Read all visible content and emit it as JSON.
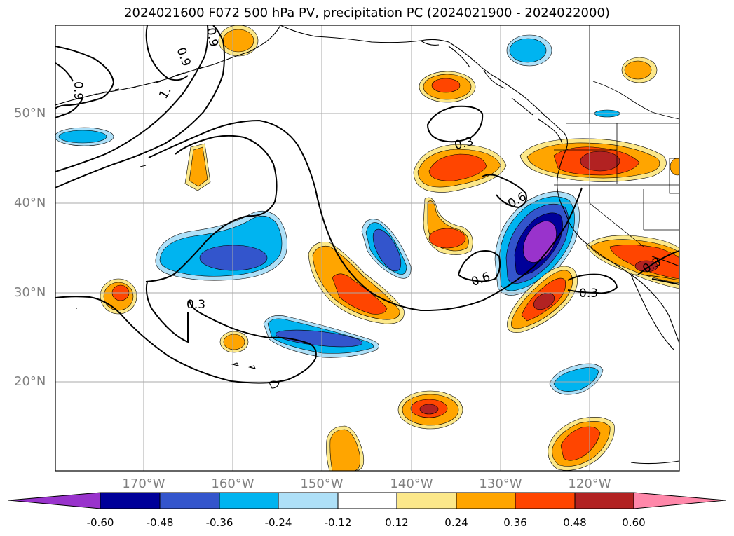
{
  "title": "2024021600 F072 500 hPa PV, precipitation PC (2024021900 - 2024022000)",
  "lat_labels": [
    {
      "text": "50°N"
    },
    {
      "text": "40°N"
    },
    {
      "text": "30°N"
    },
    {
      "text": "20°N"
    }
  ],
  "lon_labels": [
    {
      "text": "170°W"
    },
    {
      "text": "160°W"
    },
    {
      "text": "150°W"
    },
    {
      "text": "140°W"
    },
    {
      "text": "130°W"
    },
    {
      "text": "120°W"
    }
  ],
  "contour_labels": [
    {
      "text": "0.9"
    },
    {
      "text": "0.9"
    },
    {
      "text": "0.9"
    },
    {
      "text": "1."
    },
    {
      "text": "0.3"
    },
    {
      "text": "0.6"
    },
    {
      "text": "0.6"
    },
    {
      "text": "0.3"
    },
    {
      "text": "0.3"
    },
    {
      "text": "0.3"
    }
  ],
  "colorbar": {
    "colors": [
      "#9933cc",
      "#000099",
      "#3355cc",
      "#00b4f0",
      "#aee0f8",
      "#ffffff",
      "#fce88a",
      "#ffa500",
      "#ff4500",
      "#b22222",
      "#ff88aa"
    ],
    "ticks": [
      "-0.60",
      "-0.48",
      "-0.36",
      "-0.24",
      "-0.12",
      "0.12",
      "0.24",
      "0.36",
      "0.48",
      "0.60"
    ]
  }
}
